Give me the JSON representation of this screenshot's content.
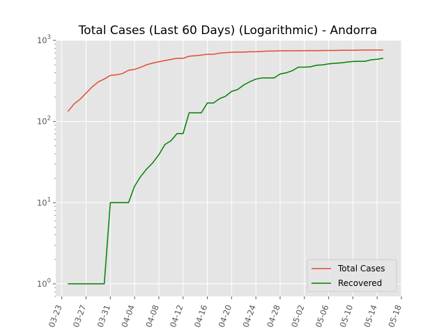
{
  "chart_data": {
    "type": "line",
    "title": "Total Cases (Last 60 Days) (Logarithmic) - Andorra",
    "xlabel": "",
    "ylabel": "",
    "yscale": "log",
    "ylim": [
      0.7,
      1000
    ],
    "xlim": [
      "2020-03-22",
      "2020-05-18"
    ],
    "grid": true,
    "legend": "lower-right",
    "x_ticks": [
      "03-23",
      "03-27",
      "03-31",
      "04-04",
      "04-08",
      "04-12",
      "04-16",
      "04-20",
      "04-24",
      "04-28",
      "05-02",
      "05-06",
      "05-10",
      "05-14",
      "05-18"
    ],
    "y_ticks": [
      {
        "value": 1,
        "base": "10",
        "exp": "0"
      },
      {
        "value": 10,
        "base": "10",
        "exp": "1"
      },
      {
        "value": 100,
        "base": "10",
        "exp": "2"
      },
      {
        "value": 1000,
        "base": "10",
        "exp": "3"
      }
    ],
    "x": [
      "2020-03-24",
      "2020-03-25",
      "2020-03-26",
      "2020-03-27",
      "2020-03-28",
      "2020-03-29",
      "2020-03-30",
      "2020-03-31",
      "2020-04-01",
      "2020-04-02",
      "2020-04-03",
      "2020-04-04",
      "2020-04-05",
      "2020-04-06",
      "2020-04-07",
      "2020-04-08",
      "2020-04-09",
      "2020-04-10",
      "2020-04-11",
      "2020-04-12",
      "2020-04-13",
      "2020-04-14",
      "2020-04-15",
      "2020-04-16",
      "2020-04-17",
      "2020-04-18",
      "2020-04-19",
      "2020-04-20",
      "2020-04-21",
      "2020-04-22",
      "2020-04-23",
      "2020-04-24",
      "2020-04-25",
      "2020-04-26",
      "2020-04-27",
      "2020-04-28",
      "2020-04-29",
      "2020-04-30",
      "2020-05-01",
      "2020-05-02",
      "2020-05-03",
      "2020-05-04",
      "2020-05-05",
      "2020-05-06",
      "2020-05-07",
      "2020-05-08",
      "2020-05-09",
      "2020-05-10",
      "2020-05-11",
      "2020-05-12",
      "2020-05-13",
      "2020-05-14",
      "2020-05-15"
    ],
    "series": [
      {
        "name": "Total Cases",
        "color": "#e24a33",
        "values": [
          133,
          164,
          188,
          224,
          267,
          308,
          334,
          370,
          376,
          390,
          428,
          439,
          466,
          501,
          525,
          545,
          564,
          583,
          601,
          601,
          638,
          646,
          659,
          673,
          673,
          696,
          704,
          713,
          717,
          717,
          723,
          723,
          731,
          738,
          738,
          743,
          743,
          743,
          745,
          745,
          747,
          748,
          750,
          751,
          752,
          755,
          755,
          755,
          758,
          760,
          761,
          761,
          761
        ]
      },
      {
        "name": "Recovered",
        "color": "#008000",
        "values": [
          1,
          1,
          1,
          1,
          1,
          1,
          1,
          10,
          10,
          10,
          10,
          16,
          21,
          26,
          31,
          39,
          52,
          58,
          71,
          71,
          128,
          128,
          128,
          169,
          169,
          191,
          205,
          235,
          248,
          282,
          309,
          333,
          344,
          344,
          344,
          385,
          398,
          423,
          468,
          468,
          472,
          494,
          499,
          514,
          521,
          528,
          540,
          549,
          552,
          552,
          576,
          585,
          601
        ]
      }
    ]
  }
}
